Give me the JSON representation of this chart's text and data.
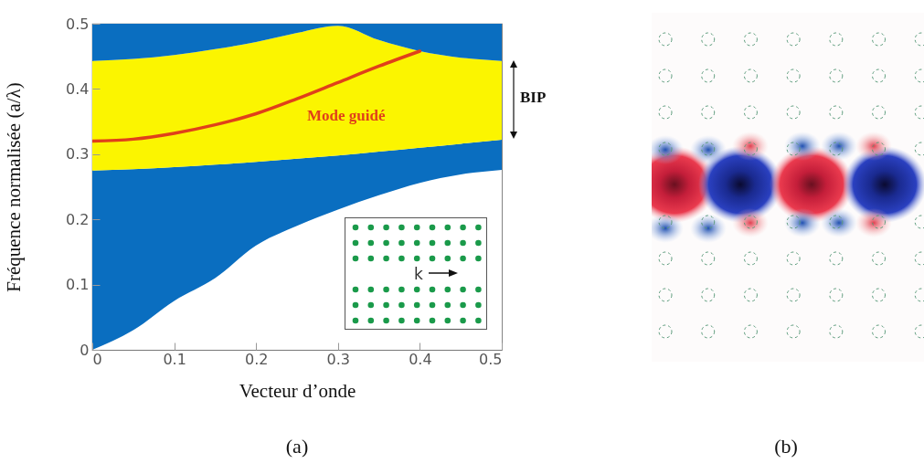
{
  "chart_data": {
    "type": "area",
    "stacked": true,
    "xlabel": "Vecteur d’onde",
    "ylabel": "Fréquence normalisée (a/λ)",
    "x": [
      0,
      0.05,
      0.1,
      0.15,
      0.2,
      0.25,
      0.3,
      0.35,
      0.4,
      0.45,
      0.5
    ],
    "xlim": [
      0,
      0.5
    ],
    "ylim": [
      0,
      0.5
    ],
    "xticks": [
      0,
      0.1,
      0.2,
      0.3,
      0.4,
      0.5
    ],
    "yticks": [
      0,
      0.1,
      0.2,
      0.3,
      0.4,
      0.5
    ],
    "series": [
      {
        "color": "#ffffff",
        "values": [
          0,
          0.03,
          0.075,
          0.11,
          0.16,
          0.19,
          0.215,
          0.237,
          0.256,
          0.269,
          0.276
        ]
      },
      {
        "color": "#0a6ec0",
        "values": [
          0.275,
          0.247,
          0.205,
          0.174,
          0.128,
          0.103,
          0.083,
          0.067,
          0.054,
          0.047,
          0.046
        ]
      },
      {
        "color": "#fbf500",
        "values": [
          0.168,
          0.169,
          0.172,
          0.177,
          0.184,
          0.193,
          0.199,
          0.171,
          0.148,
          0.132,
          0.121
        ]
      },
      {
        "color": "#0a6ec0",
        "values": [
          0.057,
          0.054,
          0.048,
          0.039,
          0.028,
          0.014,
          0.003,
          0.025,
          0.042,
          0.052,
          0.057
        ]
      },
      {
        "type": "line",
        "color": "#e0401a",
        "x": [
          0,
          0.05,
          0.1,
          0.15,
          0.2,
          0.25,
          0.3,
          0.35,
          0.4
        ],
        "values": [
          0.32,
          0.323,
          0.332,
          0.345,
          0.362,
          0.385,
          0.41,
          0.435,
          0.458
        ]
      }
    ],
    "annotations": [
      "Mode guidé",
      "BIP",
      "k",
      "(a)",
      "(b)"
    ]
  }
}
